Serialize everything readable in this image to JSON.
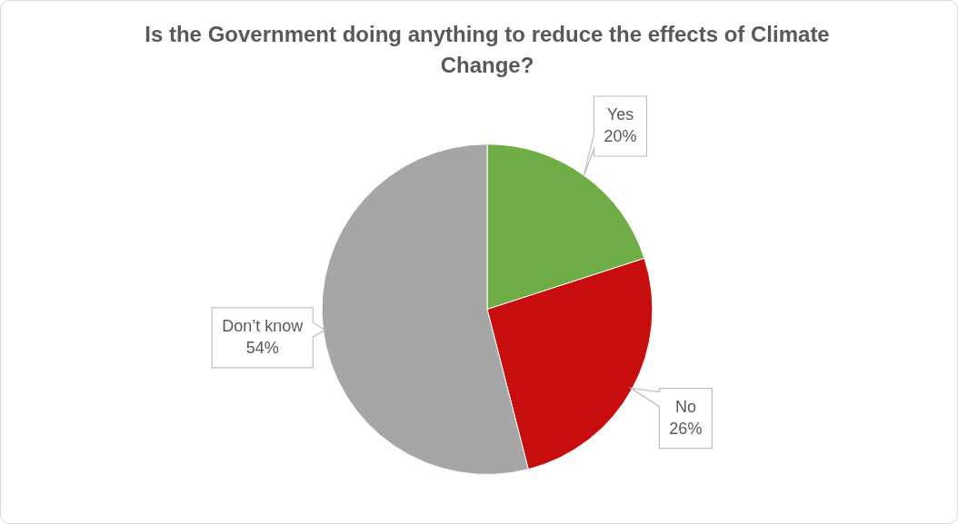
{
  "chart_data": {
    "type": "pie",
    "title": "Is the Government doing anything to reduce the effects of Climate Change?",
    "categories": [
      "Yes",
      "No",
      "Don’t know"
    ],
    "values": [
      20,
      26,
      54
    ],
    "colors": [
      "#6fae46",
      "#c70d0d",
      "#a6a6a6"
    ],
    "value_labels": [
      "20%",
      "26%",
      "54%"
    ]
  }
}
